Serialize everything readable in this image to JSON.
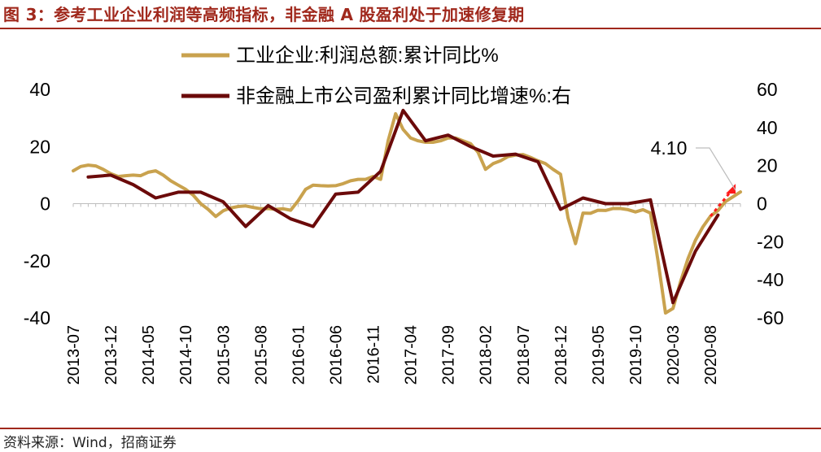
{
  "header": {
    "title": "图 3：参考工业企业利润等高频指标，非金融 A 股盈利处于加速修复期"
  },
  "footer": {
    "source": "资料来源：Wind，招商证券"
  },
  "colors": {
    "accent": "#a0281c",
    "series1": "#c9a24e",
    "series2": "#6b0a0a",
    "marker": "#ff1a1a"
  },
  "chart_data": {
    "type": "line",
    "x_ticks": [
      "2013-07",
      "2013-12",
      "2014-05",
      "2014-10",
      "2015-03",
      "2015-08",
      "2016-01",
      "2016-06",
      "2016-11",
      "2017-04",
      "2017-09",
      "2018-02",
      "2018-07",
      "2018-12",
      "2019-05",
      "2019-10",
      "2020-03",
      "2020-08"
    ],
    "left_axis": {
      "ticks": [
        40,
        20,
        0,
        -20,
        -40
      ],
      "ylim": [
        -40,
        40
      ]
    },
    "right_axis": {
      "ticks": [
        60,
        40,
        20,
        0,
        -20,
        -40,
        -60
      ],
      "ylim": [
        -60,
        60
      ]
    },
    "annotation": {
      "text": "4.10",
      "x": "2020-12",
      "y": 4.1
    },
    "series": [
      {
        "name": "工业企业:利润总额:累计同比%",
        "axis": "left",
        "points": [
          [
            "2013-07",
            11.5
          ],
          [
            "2013-08",
            13
          ],
          [
            "2013-09",
            13.5
          ],
          [
            "2013-10",
            13.2
          ],
          [
            "2013-11",
            12
          ],
          [
            "2013-12",
            10.5
          ],
          [
            "2014-01",
            9.5
          ],
          [
            "2014-02",
            9.8
          ],
          [
            "2014-03",
            10
          ],
          [
            "2014-04",
            9.8
          ],
          [
            "2014-05",
            11
          ],
          [
            "2014-06",
            11.5
          ],
          [
            "2014-07",
            10
          ],
          [
            "2014-08",
            8
          ],
          [
            "2014-09",
            6.5
          ],
          [
            "2014-10",
            5
          ],
          [
            "2014-11",
            3
          ],
          [
            "2014-12",
            0
          ],
          [
            "2015-01",
            -2
          ],
          [
            "2015-02",
            -4.5
          ],
          [
            "2015-03",
            -2.5
          ],
          [
            "2015-04",
            -1.5
          ],
          [
            "2015-05",
            -1
          ],
          [
            "2015-06",
            -0.8
          ],
          [
            "2015-07",
            -1.3
          ],
          [
            "2015-08",
            -1.8
          ],
          [
            "2015-09",
            -1.7
          ],
          [
            "2015-10",
            -2
          ],
          [
            "2015-11",
            -1.8
          ],
          [
            "2015-12",
            -2.3
          ],
          [
            "2016-01",
            1
          ],
          [
            "2016-02",
            5
          ],
          [
            "2016-03",
            6.5
          ],
          [
            "2016-04",
            6.3
          ],
          [
            "2016-05",
            6.2
          ],
          [
            "2016-06",
            6.3
          ],
          [
            "2016-07",
            7
          ],
          [
            "2016-08",
            8
          ],
          [
            "2016-09",
            8.5
          ],
          [
            "2016-10",
            8.5
          ],
          [
            "2016-11",
            9.5
          ],
          [
            "2016-12",
            8.5
          ],
          [
            "2017-01",
            22
          ],
          [
            "2017-02",
            31.5
          ],
          [
            "2017-03",
            26
          ],
          [
            "2017-04",
            23
          ],
          [
            "2017-05",
            22
          ],
          [
            "2017-06",
            21.5
          ],
          [
            "2017-07",
            21.5
          ],
          [
            "2017-08",
            22
          ],
          [
            "2017-09",
            23
          ],
          [
            "2017-10",
            23
          ],
          [
            "2017-11",
            22
          ],
          [
            "2017-12",
            21
          ],
          [
            "2018-01",
            18
          ],
          [
            "2018-02",
            12
          ],
          [
            "2018-03",
            14
          ],
          [
            "2018-04",
            15
          ],
          [
            "2018-05",
            16.5
          ],
          [
            "2018-06",
            17
          ],
          [
            "2018-07",
            17.2
          ],
          [
            "2018-08",
            16.2
          ],
          [
            "2018-09",
            15
          ],
          [
            "2018-10",
            14
          ],
          [
            "2018-11",
            12
          ],
          [
            "2018-12",
            10.3
          ],
          [
            "2019-01",
            -5
          ],
          [
            "2019-02",
            -14
          ],
          [
            "2019-03",
            -3.3
          ],
          [
            "2019-04",
            -3.4
          ],
          [
            "2019-05",
            -2.3
          ],
          [
            "2019-06",
            -2.4
          ],
          [
            "2019-07",
            -1.7
          ],
          [
            "2019-08",
            -1.7
          ],
          [
            "2019-09",
            -2.1
          ],
          [
            "2019-10",
            -2.9
          ],
          [
            "2019-11",
            -2.1
          ],
          [
            "2019-12",
            -3.3
          ],
          [
            "2020-01",
            -20
          ],
          [
            "2020-02",
            -38.3
          ],
          [
            "2020-03",
            -36.7
          ],
          [
            "2020-04",
            -27.4
          ],
          [
            "2020-05",
            -19.3
          ],
          [
            "2020-06",
            -12.8
          ],
          [
            "2020-07",
            -8.1
          ],
          [
            "2020-08",
            -4.4
          ],
          [
            "2020-09",
            -2.4
          ],
          [
            "2020-10",
            0.7
          ],
          [
            "2020-11",
            2.4
          ],
          [
            "2020-12",
            4.1
          ]
        ]
      },
      {
        "name": "非金融上市公司盈利累计同比增速%:右",
        "axis": "right",
        "points": [
          [
            "2013-09",
            14
          ],
          [
            "2013-12",
            15
          ],
          [
            "2014-03",
            10
          ],
          [
            "2014-06",
            3
          ],
          [
            "2014-09",
            6
          ],
          [
            "2014-12",
            6
          ],
          [
            "2015-03",
            1
          ],
          [
            "2015-06",
            -12
          ],
          [
            "2015-09",
            -1
          ],
          [
            "2015-12",
            -8
          ],
          [
            "2016-03",
            -12
          ],
          [
            "2016-06",
            5
          ],
          [
            "2016-09",
            6
          ],
          [
            "2016-12",
            17
          ],
          [
            "2017-03",
            49
          ],
          [
            "2017-06",
            33
          ],
          [
            "2017-09",
            36
          ],
          [
            "2017-12",
            30
          ],
          [
            "2018-03",
            25
          ],
          [
            "2018-06",
            26
          ],
          [
            "2018-09",
            22
          ],
          [
            "2018-12",
            -3
          ],
          [
            "2019-03",
            3
          ],
          [
            "2019-06",
            0
          ],
          [
            "2019-09",
            0
          ],
          [
            "2019-12",
            2
          ],
          [
            "2020-03",
            -52
          ],
          [
            "2020-06",
            -25
          ],
          [
            "2020-09",
            -6
          ]
        ]
      }
    ]
  }
}
